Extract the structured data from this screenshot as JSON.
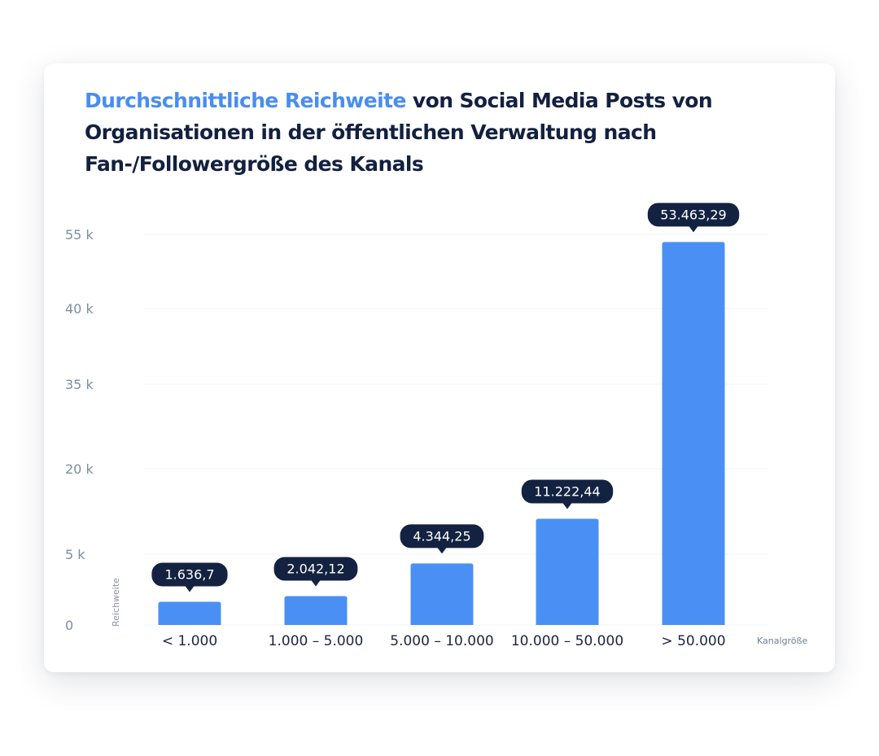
{
  "title": {
    "highlight": "Durchschnittliche Reichweite",
    "rest": " von Social Media Posts von Organisationen in der öffentlichen Verwaltung nach Fan-/Followergröße des Kanals"
  },
  "colors": {
    "bar": "#4a90f4",
    "highlight": "#4a8df0",
    "label_bubble": "#142241",
    "title": "#13203f"
  },
  "chart_data": {
    "type": "bar",
    "title": "Durchschnittliche Reichweite von Social Media Posts von Organisationen in der öffentlichen Verwaltung nach Fan-/Followergröße des Kanals",
    "xlabel": "Kanalgröße",
    "ylabel": "Reichweite",
    "categories": [
      "< 1.000",
      "1.000 – 5.000",
      "5.000 – 10.000",
      "10.000 – 50.000",
      "> 50.000"
    ],
    "values": [
      1636.7,
      2042.12,
      4344.25,
      11222.44,
      53463.29
    ],
    "data_labels": [
      "1.636,7",
      "2.042,12",
      "4.344,25",
      "11.222,44",
      "53.463,29"
    ],
    "y_ticks": [
      {
        "label": "0",
        "value": 0
      },
      {
        "label": "5 k",
        "value": 5000
      },
      {
        "label": "20 k",
        "value": 20000
      },
      {
        "label": "35 k",
        "value": 35000
      },
      {
        "label": "40 k",
        "value": 40000
      },
      {
        "label": "55 k",
        "value": 55000
      }
    ],
    "y_scale": "non-uniform, ticks spaced evenly as printed",
    "grid": true,
    "legend": "none"
  }
}
